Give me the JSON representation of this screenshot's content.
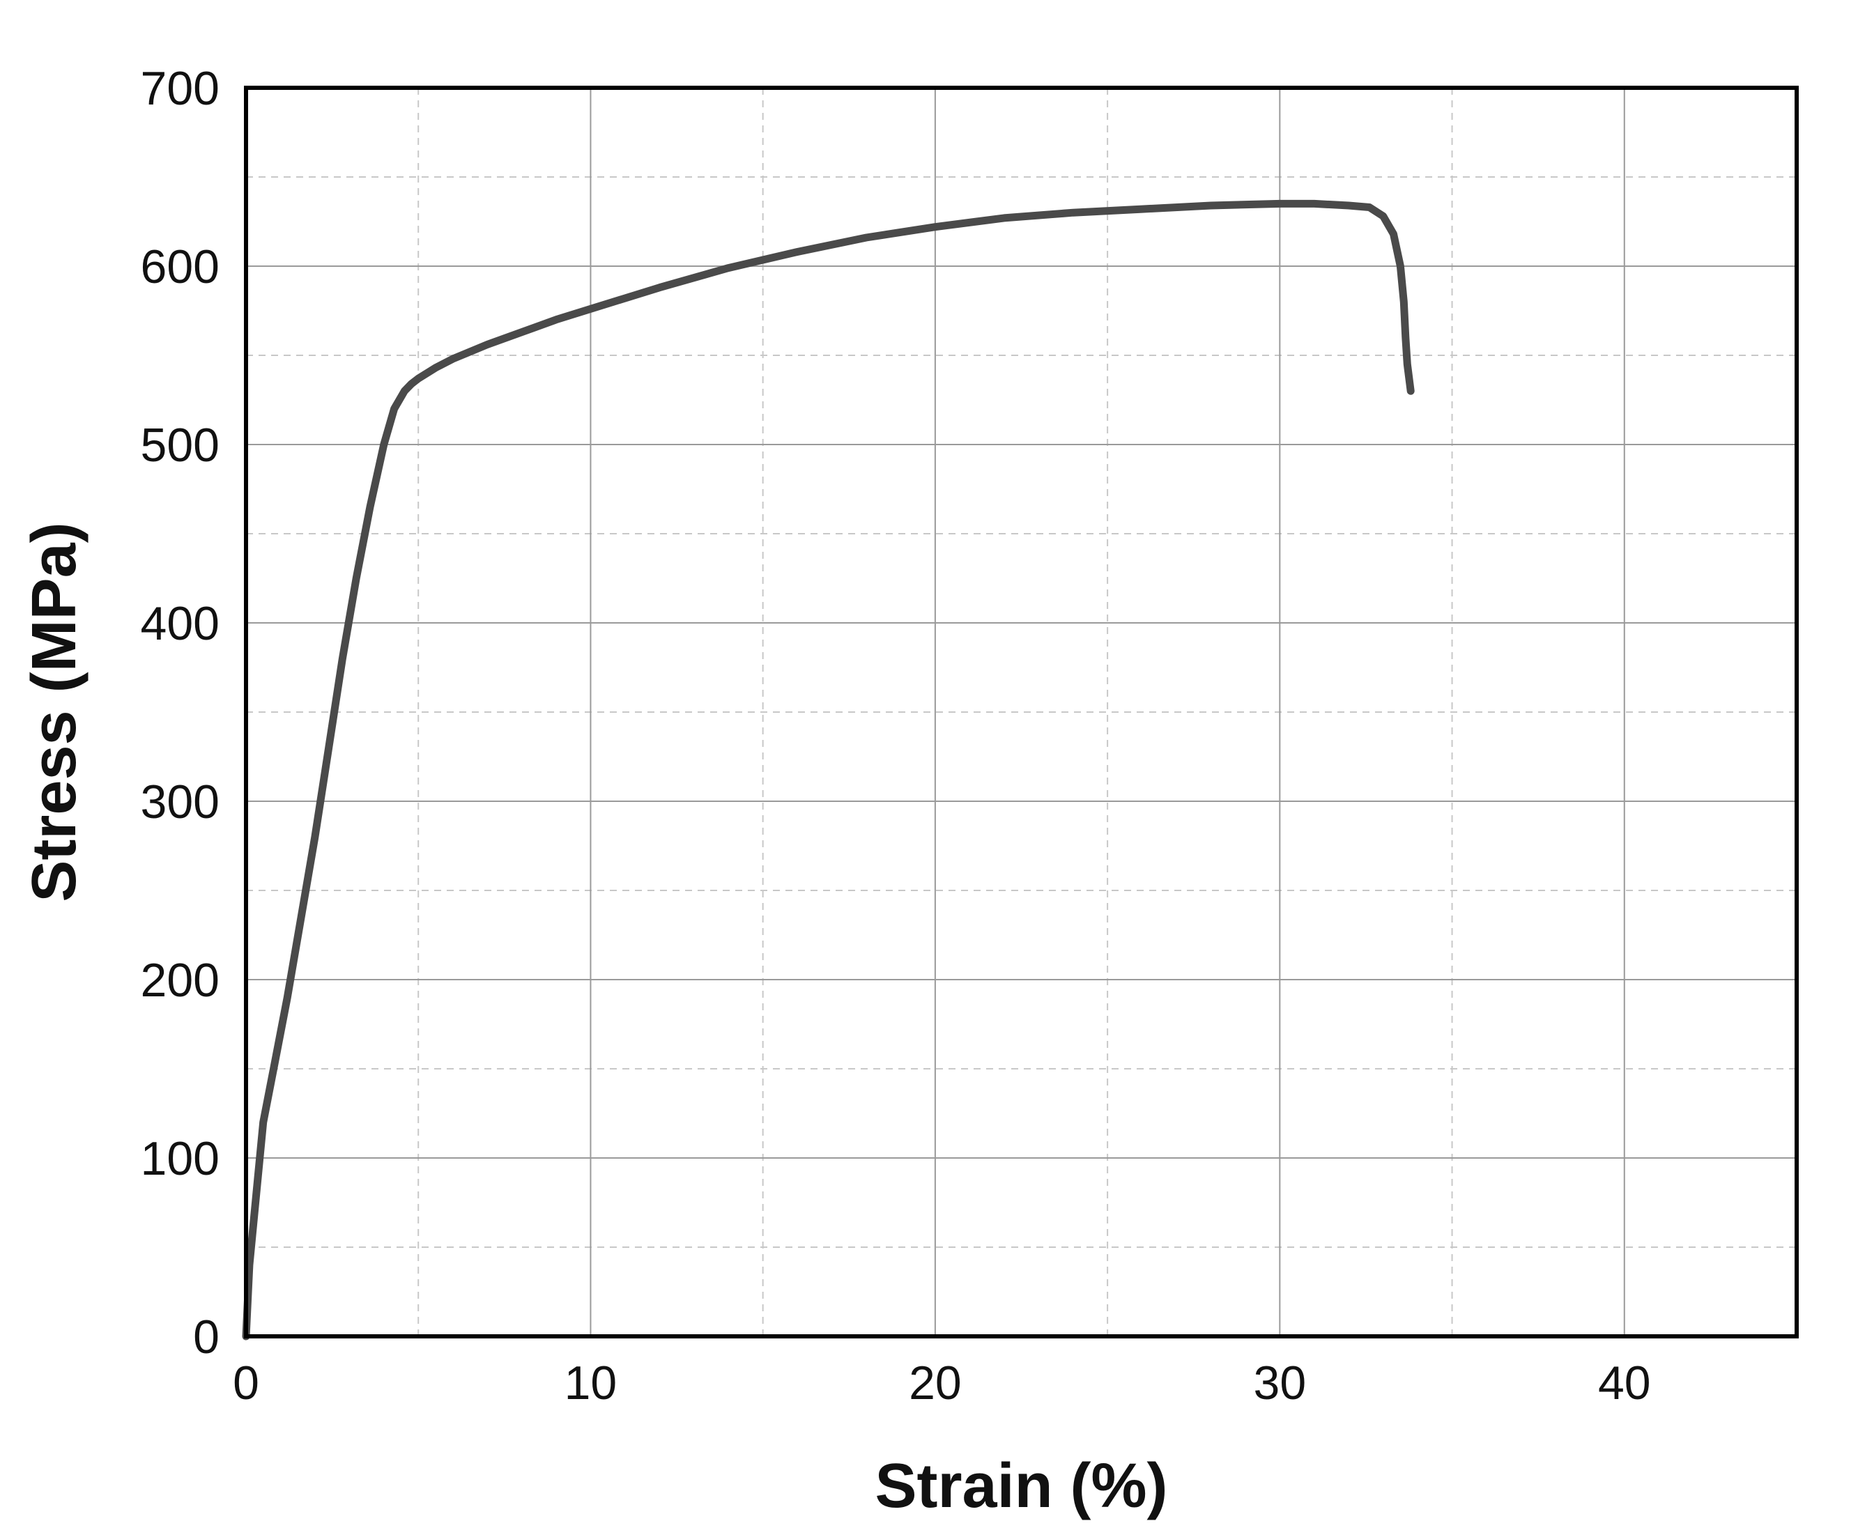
{
  "chart_data": {
    "type": "line",
    "title": "",
    "xlabel": "Strain (%)",
    "ylabel": "Stress (MPa)",
    "xlim": [
      0,
      45
    ],
    "ylim": [
      0,
      700
    ],
    "x_ticks": [
      0,
      10,
      20,
      30,
      40
    ],
    "y_ticks": [
      0,
      100,
      200,
      300,
      400,
      500,
      600,
      700
    ],
    "x_tick_labels": [
      "0",
      "10",
      "20",
      "30",
      "40"
    ],
    "y_tick_labels": [
      "0",
      "100",
      "200",
      "300",
      "400",
      "500",
      "600",
      "700"
    ],
    "major_grid": true,
    "minor_grid": true,
    "minor_grid_style": "dashed",
    "legend": "none",
    "colors": {
      "line": "#4a4a4a",
      "frame": "#000000",
      "major_grid": "#9a9a9a",
      "minor_grid": "#c8c8c8"
    },
    "series": [
      {
        "x": [
          0,
          0.1,
          0.3,
          0.5,
          0.8,
          1.2,
          1.6,
          2.0,
          2.4,
          2.8,
          3.2,
          3.6,
          4.0,
          4.3,
          4.6,
          4.8,
          5.0,
          5.5,
          6.0,
          7.0,
          8.0,
          9.0,
          10.0,
          12.0,
          14.0,
          16.0,
          18.0,
          20.0,
          22.0,
          24.0,
          26.0,
          28.0,
          30.0,
          31.0,
          32.0,
          32.6,
          33.0,
          33.3,
          33.5,
          33.6,
          33.65,
          33.7,
          33.8
        ],
        "values": [
          0,
          40,
          80,
          120,
          150,
          190,
          235,
          280,
          330,
          380,
          425,
          465,
          500,
          520,
          530,
          534,
          537,
          543,
          548,
          556,
          563,
          570,
          576,
          588,
          599,
          608,
          616,
          622,
          627,
          630,
          632,
          634,
          635,
          635,
          634,
          633,
          628,
          618,
          600,
          580,
          560,
          545,
          530
        ]
      }
    ]
  }
}
